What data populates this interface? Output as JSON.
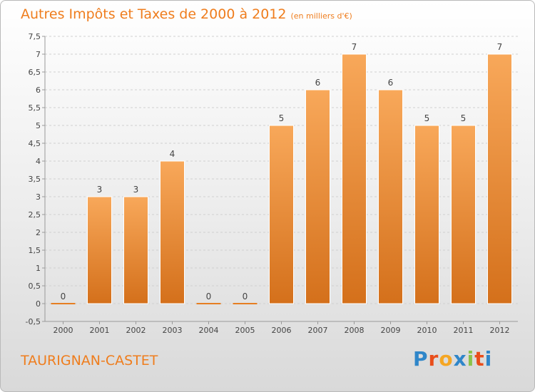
{
  "title": "Autres Impôts et Taxes de 2000 à 2012",
  "title_unit": "(en milliers d'€)",
  "commune": "TAURIGNAN-CASTET",
  "logo": {
    "text": "Proxiti",
    "letters": [
      "P",
      "r",
      "o",
      "x",
      "i",
      "t",
      "i"
    ],
    "colors": [
      "#2f86c9",
      "#e94e1b",
      "#f5a623",
      "#2f86c9",
      "#8bc34a",
      "#e94e1b",
      "#2f86c9"
    ]
  },
  "colors": {
    "bar_top": "#f8a85a",
    "bar_bottom": "#d4701b",
    "title": "#ef7d1d",
    "grid": "#d0d0d0",
    "axis": "#999999"
  },
  "chart_data": {
    "type": "bar",
    "title": "Autres Impôts et Taxes de 2000 à 2012",
    "categories": [
      "2000",
      "2001",
      "2002",
      "2003",
      "2004",
      "2005",
      "2006",
      "2007",
      "2008",
      "2009",
      "2010",
      "2011",
      "2012"
    ],
    "values": [
      0,
      3,
      3,
      4,
      0,
      0,
      5,
      6,
      7,
      6,
      5,
      5,
      7
    ],
    "data_labels": [
      "0",
      "3",
      "3",
      "4",
      "0",
      "0",
      "5",
      "6",
      "7",
      "6",
      "5",
      "5",
      "7"
    ],
    "yticks": [
      "-0,5",
      "0",
      "0,5",
      "1",
      "1,5",
      "2",
      "2,5",
      "3",
      "3,5",
      "4",
      "4,5",
      "5",
      "5,5",
      "6",
      "6,5",
      "7",
      "7,5"
    ],
    "ytick_values": [
      -0.5,
      0,
      0.5,
      1,
      1.5,
      2,
      2.5,
      3,
      3.5,
      4,
      4.5,
      5,
      5.5,
      6,
      6.5,
      7,
      7.5
    ],
    "ylim": [
      -0.5,
      7.5
    ],
    "xlabel": "",
    "ylabel": "",
    "grid": true
  }
}
